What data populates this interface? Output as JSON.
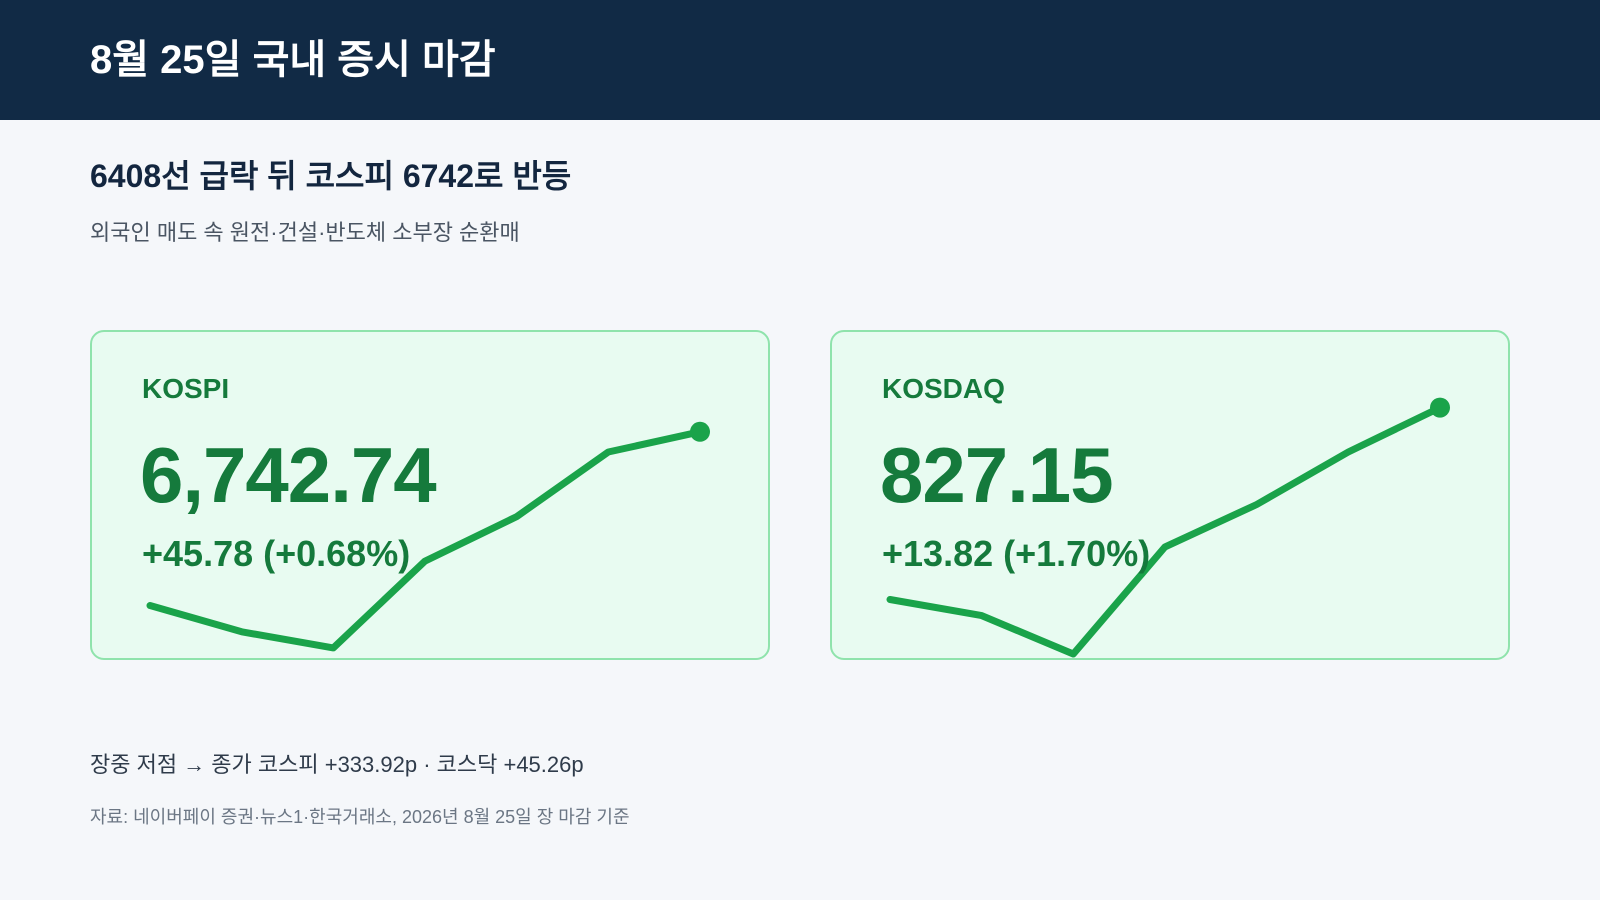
{
  "header": {
    "title": "8월 25일 국내 증시 마감"
  },
  "headline": "6408선 급락 뒤 코스피 6742로 반등",
  "subheadline": "외국인 매도 속 원전·건설·반도체 소부장 순환매",
  "colors": {
    "header_bg": "#112a45",
    "card_bg": "#e8fbf1",
    "card_border": "#8fe3ac",
    "up_text": "#157a3c",
    "spark_line": "#1aa34a"
  },
  "cards": [
    {
      "label": "KOSPI",
      "value": "6,742.74",
      "change": "+45.78 (+0.68%)"
    },
    {
      "label": "KOSDAQ",
      "value": "827.15",
      "change": "+13.82 (+1.70%)"
    }
  ],
  "chart_data": [
    {
      "type": "line",
      "series": [
        {
          "values": [
            0.24,
            0.11,
            0.03,
            0.46,
            0.68,
            1.0,
            1.1
          ]
        }
      ]
    },
    {
      "type": "line",
      "series": [
        {
          "values": [
            0.27,
            0.19,
            0.0,
            0.53,
            0.74,
            1.0,
            1.22
          ]
        }
      ]
    }
  ],
  "footnote": "장중 저점 → 종가 코스피 +333.92p · 코스닥 +45.26p",
  "source": "자료: 네이버페이 증권·뉴스1·한국거래소, 2026년 8월 25일 장 마감 기준"
}
